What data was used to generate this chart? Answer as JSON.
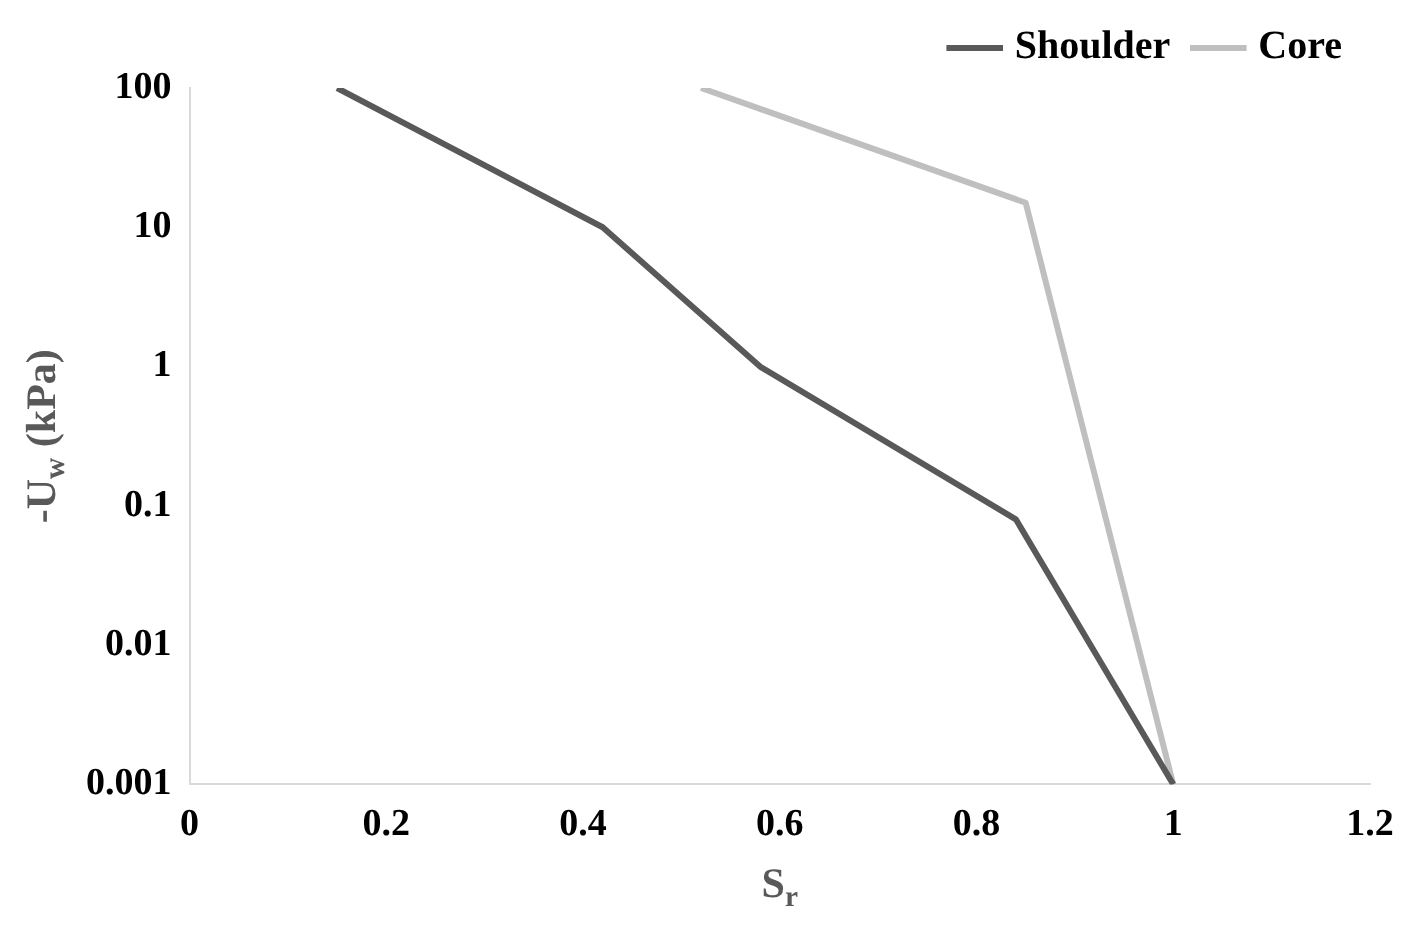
{
  "chart_data": {
    "type": "line",
    "xlabel": "S$_{r}$",
    "ylabel": "-U$_{w}$ (kPa)",
    "log": "y",
    "grid": false,
    "legend": "top right",
    "marker": "none",
    "line_style": "solid",
    "xlim": [
      0,
      1.2
    ],
    "xticks": [
      0,
      0.2,
      0.4,
      0.6,
      0.8,
      1,
      1.2
    ],
    "ylim": [
      0.001,
      100
    ],
    "yticks": [
      0.001,
      0.01,
      0.1,
      1,
      10,
      100
    ],
    "series": [
      {
        "name": "Shoulder",
        "color": "#595959",
        "x": [
          0.15,
          0.42,
          0.58,
          0.84,
          1
        ],
        "values": [
          100,
          10,
          1,
          0.08,
          0.001
        ]
      },
      {
        "name": "Core",
        "color": "#bfbfbf",
        "x": [
          0.52,
          0.85,
          1
        ],
        "values": [
          100,
          15,
          0.001
        ]
      }
    ]
  }
}
